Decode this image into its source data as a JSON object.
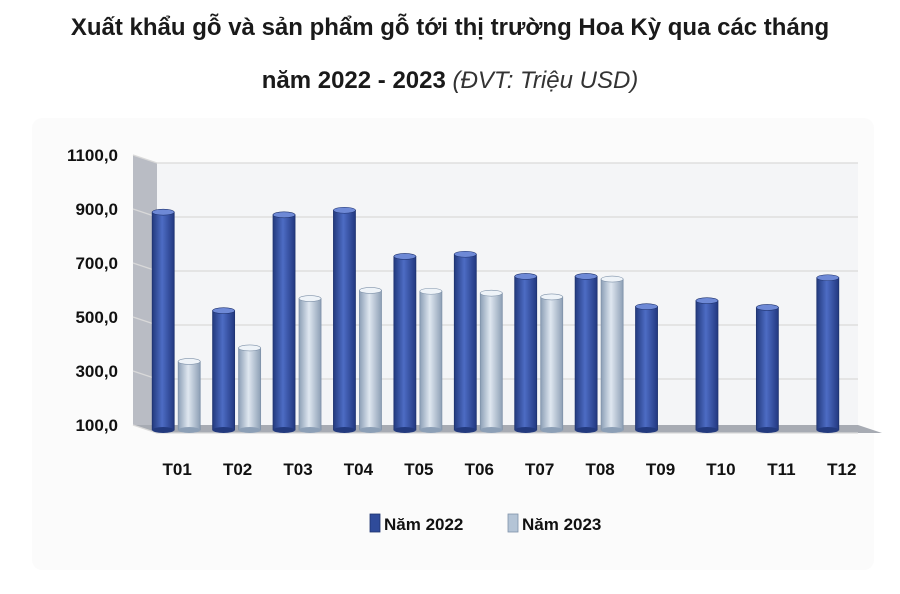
{
  "title_line1": "Xuất khẩu gỗ và sản phẩm gỗ tới thị trường Hoa Kỳ qua các tháng",
  "title_line2_main": "năm 2022 - 2023",
  "title_unit": "(ĐVT: Triệu USD)",
  "colors": {
    "s2022": "#2f4b9a",
    "s2022_light": "#5b7ad0",
    "s2023": "#a9b9cc",
    "s2023_light": "#dfe7f0",
    "grid": "#d9d9d9",
    "wall": "#eceef2"
  },
  "chart_data": {
    "type": "bar",
    "categories": [
      "T01",
      "T02",
      "T03",
      "T04",
      "T05",
      "T06",
      "T07",
      "T08",
      "T09",
      "T10",
      "T11",
      "T12"
    ],
    "series": [
      {
        "name": "Năm 2022",
        "values": [
          918,
          553,
          908,
          925,
          754,
          762,
          680,
          680,
          568,
          590,
          565,
          675
        ]
      },
      {
        "name": "Năm 2023",
        "values": [
          365,
          415,
          598,
          628,
          625,
          618,
          604,
          670,
          null,
          null,
          null,
          null
        ]
      }
    ],
    "ylim": [
      100,
      1100
    ],
    "yticks": [
      100,
      300,
      500,
      700,
      900,
      1100
    ],
    "ytick_labels": [
      "100,0",
      "300,0",
      "500,0",
      "700,0",
      "900,0",
      "1100,0"
    ],
    "grid": true,
    "legend_position": "bottom",
    "style": "3d-clustered-column"
  }
}
